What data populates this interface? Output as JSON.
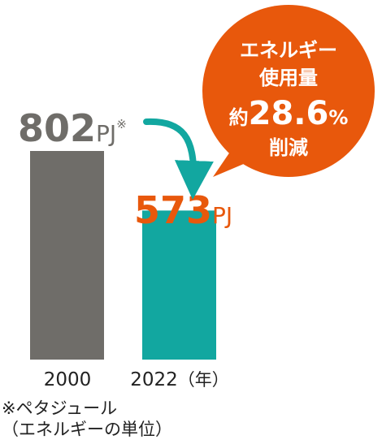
{
  "chart_data": {
    "type": "bar",
    "categories": [
      "2000",
      "2022"
    ],
    "values": [
      802,
      573
    ],
    "unit": "PJ",
    "value_labels": [
      {
        "value": "802",
        "unit": "PJ",
        "mark": "※"
      },
      {
        "value": "573",
        "unit": "PJ",
        "mark": ""
      }
    ],
    "year_suffix": "（年）",
    "ylim": [
      0,
      802
    ],
    "grid": false,
    "legend": "none",
    "bar_colors": [
      "#6f6d69",
      "#12a7a0"
    ],
    "label_colors": [
      "#6f6d69",
      "#e8580c"
    ],
    "callout": {
      "lines": [
        "エネルギー",
        "使用量"
      ],
      "prefix": "約",
      "number": "28.6",
      "percent": "%",
      "suffix": "削減",
      "color": "#e8580c"
    },
    "arrow_color": "#12a7a0"
  },
  "footnote": {
    "line1": "※ペタジュール",
    "line2": "（エネルギーの単位）"
  }
}
